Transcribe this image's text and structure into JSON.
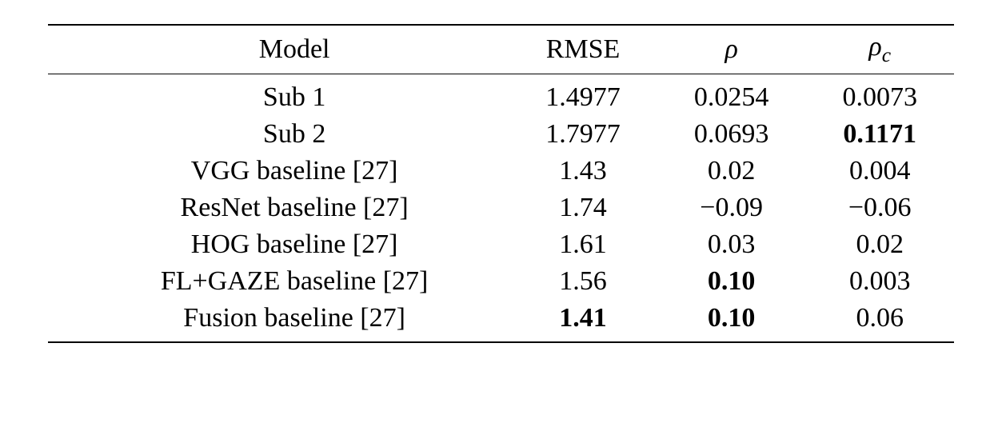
{
  "columns": [
    {
      "label": "Model"
    },
    {
      "label": "RMSE"
    },
    {
      "label": "ρ",
      "italic": true
    },
    {
      "label": "ρ",
      "italic": true,
      "subscript": "c"
    }
  ],
  "rows": [
    {
      "model": "Sub 1",
      "rmse": "1.4977",
      "rho": "0.0254",
      "rhoc": "0.0073"
    },
    {
      "model": "Sub 2",
      "rmse": "1.7977",
      "rho": "0.0693",
      "rhoc": "0.1171",
      "rhoc_bold": true
    },
    {
      "model": "VGG baseline [27]",
      "rmse": "1.43",
      "rho": "0.02",
      "rhoc": "0.004"
    },
    {
      "model": "ResNet baseline [27]",
      "rmse": "1.74",
      "rho": "−0.09",
      "rhoc": "−0.06"
    },
    {
      "model": "HOG baseline [27]",
      "rmse": "1.61",
      "rho": "0.03",
      "rhoc": "0.02"
    },
    {
      "model": "FL+GAZE baseline [27]",
      "rmse": "1.56",
      "rho": "0.10",
      "rho_bold": true,
      "rhoc": "0.003"
    },
    {
      "model": "Fusion baseline [27]",
      "rmse": "1.41",
      "rmse_bold": true,
      "rho": "0.10",
      "rho_bold": true,
      "rhoc": "0.06"
    }
  ],
  "styles": {
    "font_family": "Times New Roman",
    "font_size": 34,
    "text_color": "#000000",
    "background_color": "#ffffff",
    "rule_color": "#000000",
    "top_rule_width": 2,
    "mid_rule_width": 1.5,
    "bottom_rule_width": 2
  }
}
